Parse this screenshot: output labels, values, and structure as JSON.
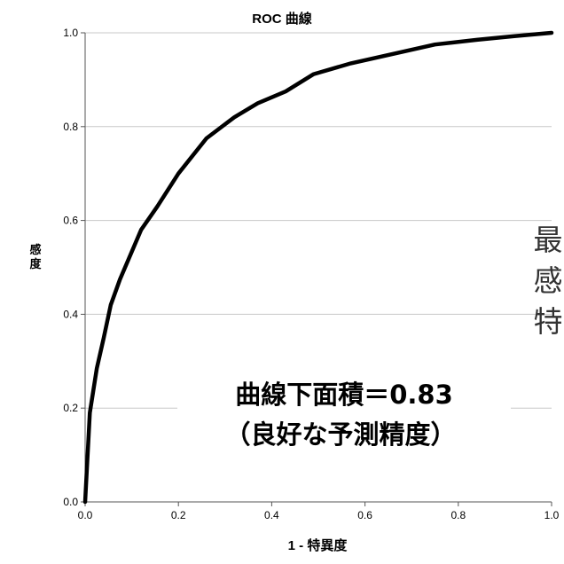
{
  "chart_data": {
    "type": "line",
    "title": "ROC 曲線",
    "ylabel": "感度",
    "xlabel": "1 - 特異度",
    "xlim": [
      0.0,
      1.0
    ],
    "ylim": [
      0.0,
      1.0
    ],
    "xticks": [
      "0.0",
      "0.2",
      "0.4",
      "0.6",
      "0.8",
      "1.0"
    ],
    "yticks": [
      "0.0",
      "0.2",
      "0.4",
      "0.6",
      "0.8",
      "1.0"
    ],
    "grid": "horizontal",
    "series": [
      {
        "x": [
          0.0,
          0.01,
          0.025,
          0.04,
          0.055,
          0.075,
          0.09,
          0.12,
          0.155,
          0.2,
          0.26,
          0.32,
          0.37,
          0.43,
          0.49,
          0.57,
          0.66,
          0.75,
          0.84,
          0.92,
          1.0
        ],
        "y": [
          0.0,
          0.19,
          0.285,
          0.35,
          0.42,
          0.475,
          0.51,
          0.58,
          0.63,
          0.7,
          0.775,
          0.82,
          0.85,
          0.875,
          0.912,
          0.935,
          0.955,
          0.975,
          0.985,
          0.993,
          1.0
        ]
      }
    ],
    "annotations": [
      "曲線下面積＝0.83",
      "（良好な予測精度）"
    ],
    "side_text": [
      "最",
      "感",
      "特"
    ],
    "line_color": "#000000",
    "grid_color": "#c8c8c8"
  }
}
